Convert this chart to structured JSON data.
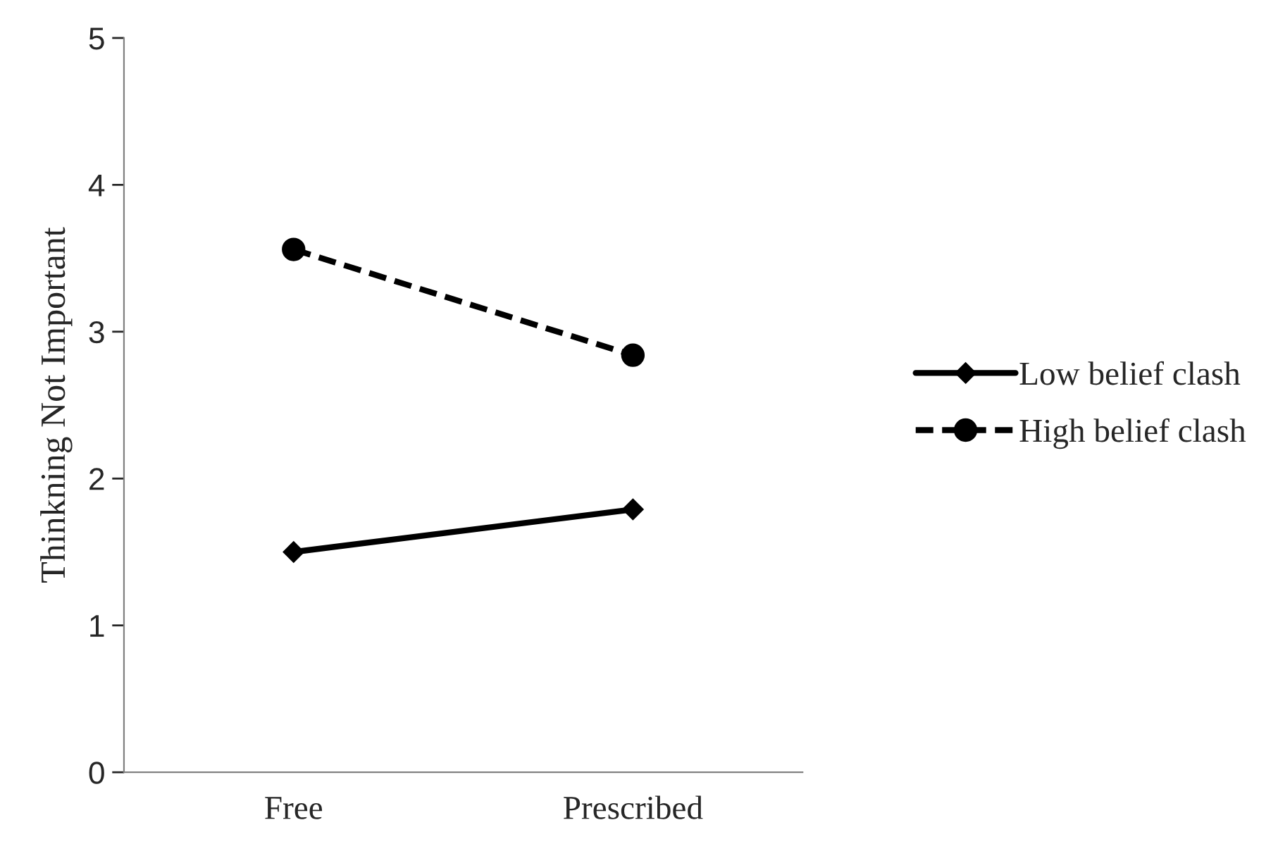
{
  "chart_data": {
    "type": "line",
    "ylabel": "Thinkning Not Important",
    "categories": [
      "Free",
      "Prescribed"
    ],
    "series": [
      {
        "name": "Low belief clash",
        "color": "#000000",
        "values": [
          1.5,
          1.79
        ],
        "marker": "diamond",
        "line_style": "solid"
      },
      {
        "name": "High belief clash",
        "color": "#000000",
        "values": [
          3.56,
          2.84
        ],
        "marker": "circle",
        "line_style": "dashed"
      }
    ],
    "ylim": [
      0,
      5
    ],
    "yticks": [
      0,
      1,
      2,
      3,
      4,
      5
    ],
    "grid": false,
    "legend": "right"
  }
}
